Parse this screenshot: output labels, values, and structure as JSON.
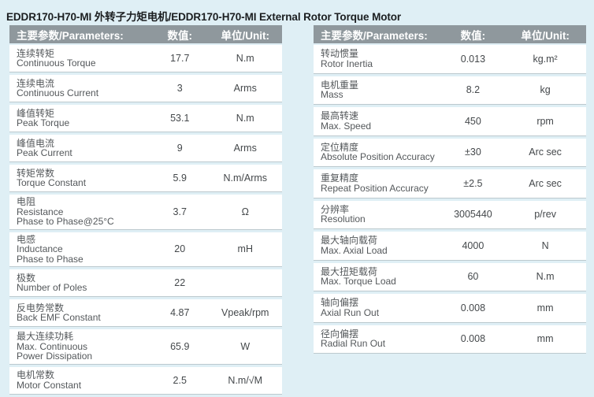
{
  "title": "EDDR170-H70-MI 外转子力矩电机/EDDR170-H70-MI External Rotor Torque Motor",
  "colors": {
    "background": "#dfeff5",
    "header_bg": "#8f989d",
    "header_text": "#ffffff",
    "row_bg": "#ffffff",
    "divider": "#bcc9ce",
    "label_text": "#54585b",
    "value_text": "#44484b"
  },
  "tables": [
    {
      "headers": {
        "parameter": "主要参数/Parameters:",
        "value": "数值:",
        "unit": "单位/Unit:"
      },
      "rows": [
        {
          "lines": [
            "连续转矩",
            "Continuous Torque"
          ],
          "value": "17.7",
          "unit": "N.m"
        },
        {
          "lines": [
            "连续电流",
            "Continuous Current"
          ],
          "value": "3",
          "unit": "Arms"
        },
        {
          "lines": [
            "峰值转矩",
            "Peak Torque"
          ],
          "value": "53.1",
          "unit": "N.m"
        },
        {
          "lines": [
            "峰值电流",
            "Peak Current"
          ],
          "value": "9",
          "unit": "Arms"
        },
        {
          "lines": [
            "转矩常数",
            "Torque Constant"
          ],
          "value": "5.9",
          "unit": "N.m/Arms"
        },
        {
          "lines": [
            "电阻",
            "Resistance",
            "Phase to Phase@25°C"
          ],
          "value": "3.7",
          "unit": "Ω"
        },
        {
          "lines": [
            "电感",
            "Inductance",
            "Phase to Phase"
          ],
          "value": "20",
          "unit": "mH"
        },
        {
          "lines": [
            "极数",
            "Number of Poles"
          ],
          "value": "22",
          "unit": ""
        },
        {
          "lines": [
            "反电势常数",
            "Back EMF Constant"
          ],
          "value": "4.87",
          "unit": "Vpeak/rpm"
        },
        {
          "lines": [
            "最大连续功耗",
            "Max. Continuous",
            "Power Dissipation"
          ],
          "value": "65.9",
          "unit": "W"
        },
        {
          "lines": [
            "电机常数",
            "Motor Constant"
          ],
          "value": "2.5",
          "unit": "N.m/√M"
        }
      ]
    },
    {
      "headers": {
        "parameter": "主要参数/Parameters:",
        "value": "数值:",
        "unit": "单位/Unit:"
      },
      "rows": [
        {
          "lines": [
            "转动惯量",
            "Rotor Inertia"
          ],
          "value": "0.013",
          "unit": "kg.m²"
        },
        {
          "lines": [
            "电机重量",
            "Mass"
          ],
          "value": "8.2",
          "unit": "kg"
        },
        {
          "lines": [
            "最高转速",
            "Max. Speed"
          ],
          "value": "450",
          "unit": "rpm"
        },
        {
          "lines": [
            "定位精度",
            "Absolute Position Accuracy"
          ],
          "value": "±30",
          "unit": "Arc sec"
        },
        {
          "lines": [
            "重复精度",
            "Repeat Position Accuracy"
          ],
          "value": "±2.5",
          "unit": "Arc sec"
        },
        {
          "lines": [
            "分辨率",
            "Resolution"
          ],
          "value": "3005440",
          "unit": "p/rev"
        },
        {
          "lines": [
            "最大轴向载荷",
            "Max. Axial Load"
          ],
          "value": "4000",
          "unit": "N"
        },
        {
          "lines": [
            "最大扭矩载荷",
            "Max. Torque Load"
          ],
          "value": "60",
          "unit": "N.m"
        },
        {
          "lines": [
            "轴向偏摆",
            "Axial Run Out"
          ],
          "value": "0.008",
          "unit": "mm"
        },
        {
          "lines": [
            "径向偏摆",
            "Radial Run Out"
          ],
          "value": "0.008",
          "unit": "mm"
        }
      ]
    }
  ]
}
